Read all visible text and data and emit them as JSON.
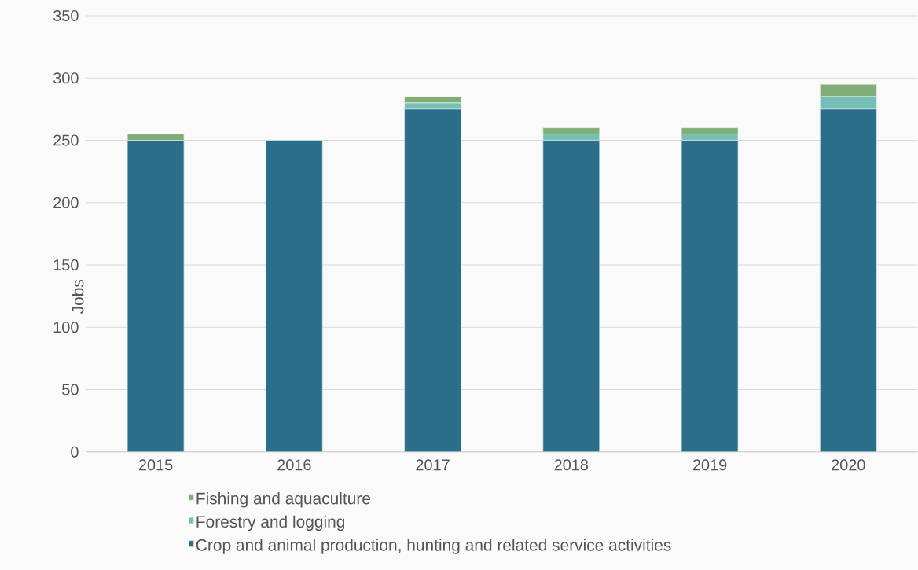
{
  "chart_data": {
    "type": "bar",
    "stacked": true,
    "ylabel": "Jobs",
    "categories": [
      "2015",
      "2016",
      "2017",
      "2018",
      "2019",
      "2020"
    ],
    "series": [
      {
        "name": "Crop and animal production, hunting and related service activities",
        "color": "#2b6e89",
        "values": [
          250,
          250,
          275,
          250,
          250,
          275
        ]
      },
      {
        "name": "Forestry and logging",
        "color": "#76bfb6",
        "values": [
          0,
          0,
          5,
          5,
          5,
          10
        ]
      },
      {
        "name": "Fishing and aquaculture",
        "color": "#81ad77",
        "values": [
          5,
          0,
          5,
          5,
          5,
          10
        ]
      }
    ],
    "ylim": [
      0,
      350
    ],
    "yticks": [
      0,
      50,
      100,
      150,
      200,
      250,
      300,
      350
    ],
    "grid": "y",
    "legend": "bottom"
  }
}
